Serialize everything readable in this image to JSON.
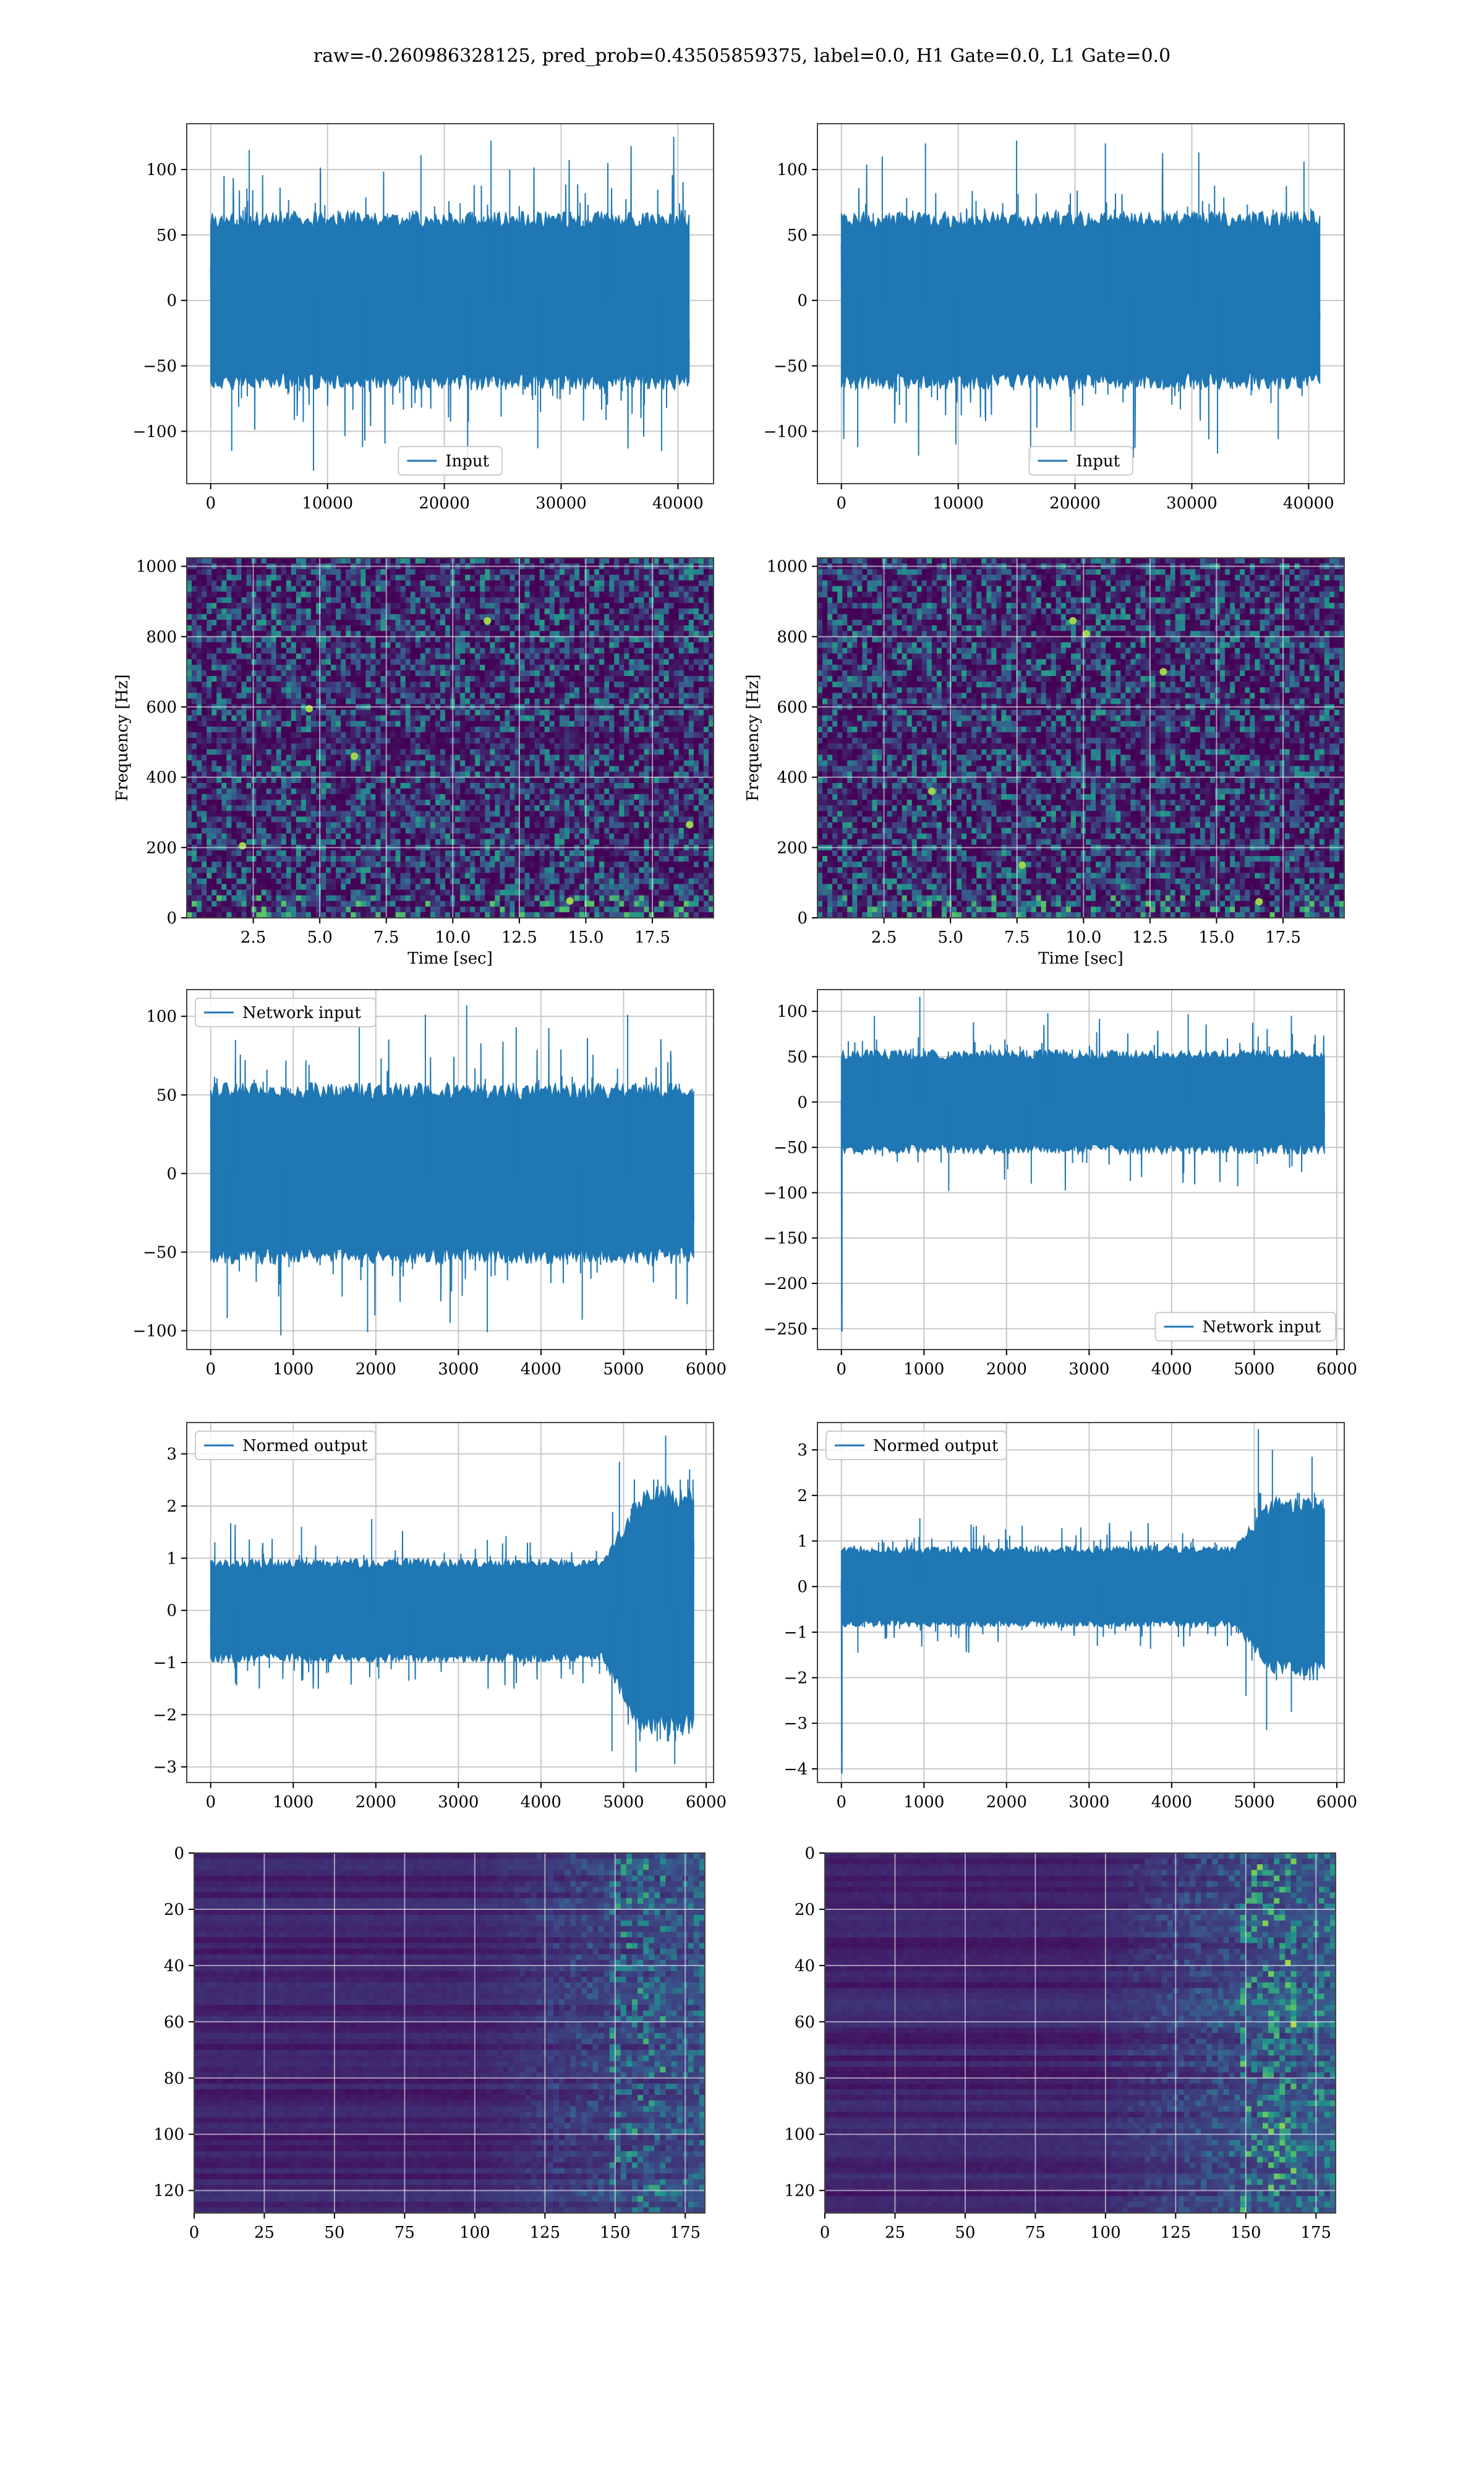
{
  "title": "raw=-0.260986328125, pred_prob=0.43505859375, label=0.0, H1 Gate=0.0, L1 Gate=0.0",
  "colors": {
    "line": "#1f77b4",
    "grid": "#c8c8c8",
    "viridis_low": "#440154",
    "viridis_mid": "#31688e",
    "viridis_high": "#35b779",
    "viridis_top": "#fde725"
  },
  "chart_data": [
    {
      "id": "h1-input",
      "type": "line",
      "legend": "Input",
      "legend_loc": "lower-center",
      "xlim": [
        -2050,
        43050
      ],
      "ylim": [
        -140,
        135
      ],
      "xticks": [
        0,
        10000,
        20000,
        30000,
        40000
      ],
      "xtick_labels": [
        "0",
        "10000",
        "20000",
        "30000",
        "40000"
      ],
      "yticks": [
        -100,
        -50,
        0,
        50,
        100
      ],
      "ytick_labels": [
        "−100",
        "−50",
        "0",
        "50",
        "100"
      ],
      "x_range": [
        0,
        40960
      ],
      "envelope": {
        "core": 65,
        "spike_max": 125,
        "spike_min": -130,
        "peaks": [
          [
            3300,
            115
          ],
          [
            9400,
            98
          ],
          [
            18000,
            111
          ],
          [
            24000,
            122
          ],
          [
            25600,
            100
          ],
          [
            34000,
            105
          ]
        ],
        "troughs": [
          [
            1800,
            -115
          ],
          [
            8800,
            -130
          ],
          [
            13000,
            -112
          ],
          [
            22000,
            -118
          ],
          [
            28000,
            -113
          ],
          [
            38600,
            -115
          ]
        ],
        "ramp": 0
      }
    },
    {
      "id": "l1-input",
      "type": "line",
      "legend": "Input",
      "legend_loc": "lower-center",
      "xlim": [
        -2050,
        43050
      ],
      "ylim": [
        -140,
        135
      ],
      "xticks": [
        0,
        10000,
        20000,
        30000,
        40000
      ],
      "xtick_labels": [
        "0",
        "10000",
        "20000",
        "30000",
        "40000"
      ],
      "yticks": [
        -100,
        -50,
        0,
        50,
        100
      ],
      "ytick_labels": [
        "−100",
        "−50",
        "0",
        "50",
        "100"
      ],
      "x_range": [
        0,
        40960
      ],
      "envelope": {
        "core": 65,
        "spike_max": 123,
        "spike_min": -125,
        "peaks": [
          [
            3500,
            110
          ],
          [
            7200,
            120
          ],
          [
            15000,
            122
          ],
          [
            22600,
            120
          ],
          [
            30600,
            113
          ],
          [
            39600,
            106
          ]
        ],
        "troughs": [
          [
            1400,
            -112
          ],
          [
            9800,
            -110
          ],
          [
            16200,
            -123
          ],
          [
            25000,
            -120
          ],
          [
            32200,
            -117
          ],
          [
            37400,
            -106
          ]
        ],
        "ramp": 0
      }
    },
    {
      "id": "h1-spectrogram",
      "type": "heatmap",
      "kind": "spectrogram",
      "xlabel": "Time [sec]",
      "ylabel": "Frequency [Hz]",
      "xlim": [
        0,
        19.8
      ],
      "ylim": [
        0,
        1024
      ],
      "xticks": [
        2.5,
        5.0,
        7.5,
        10.0,
        12.5,
        15.0,
        17.5
      ],
      "xtick_labels": [
        "2.5",
        "5.0",
        "7.5",
        "10.0",
        "12.5",
        "15.0",
        "17.5"
      ],
      "yticks": [
        0,
        200,
        400,
        600,
        800,
        1000
      ],
      "ytick_labels": [
        "0",
        "200",
        "400",
        "600",
        "800",
        "1000"
      ],
      "hot_spots": [
        [
          11.3,
          845
        ],
        [
          4.6,
          595
        ],
        [
          14.4,
          48
        ],
        [
          18.9,
          265
        ],
        [
          6.3,
          460
        ],
        [
          2.1,
          205
        ]
      ]
    },
    {
      "id": "l1-spectrogram",
      "type": "heatmap",
      "kind": "spectrogram",
      "xlabel": "Time [sec]",
      "ylabel": "Frequency [Hz]",
      "xlim": [
        0,
        19.8
      ],
      "ylim": [
        0,
        1024
      ],
      "xticks": [
        2.5,
        5.0,
        7.5,
        10.0,
        12.5,
        15.0,
        17.5
      ],
      "xtick_labels": [
        "2.5",
        "5.0",
        "7.5",
        "10.0",
        "12.5",
        "15.0",
        "17.5"
      ],
      "yticks": [
        0,
        200,
        400,
        600,
        800,
        1000
      ],
      "ytick_labels": [
        "0",
        "200",
        "400",
        "600",
        "800",
        "1000"
      ],
      "hot_spots": [
        [
          9.6,
          845
        ],
        [
          10.1,
          808
        ],
        [
          16.6,
          46
        ],
        [
          4.3,
          360
        ],
        [
          13.0,
          700
        ],
        [
          7.7,
          150
        ]
      ]
    },
    {
      "id": "h1-network-input",
      "type": "line",
      "legend": "Network input",
      "legend_loc": "upper-left",
      "xlim": [
        -290,
        6090
      ],
      "ylim": [
        -112,
        117
      ],
      "xticks": [
        0,
        1000,
        2000,
        3000,
        4000,
        5000,
        6000
      ],
      "xtick_labels": [
        "0",
        "1000",
        "2000",
        "3000",
        "4000",
        "5000",
        "6000"
      ],
      "yticks": [
        -100,
        -50,
        0,
        50,
        100
      ],
      "ytick_labels": [
        "−100",
        "−50",
        "0",
        "50",
        "100"
      ],
      "x_range": [
        0,
        5850
      ],
      "envelope": {
        "core": 55,
        "spike_max": 107,
        "spike_min": -103,
        "peaks": [
          [
            300,
            85
          ],
          [
            1800,
            94
          ],
          [
            2600,
            101
          ],
          [
            3100,
            107
          ],
          [
            3700,
            93
          ],
          [
            5050,
            101
          ]
        ],
        "troughs": [
          [
            200,
            -92
          ],
          [
            850,
            -103
          ],
          [
            1900,
            -101
          ],
          [
            2900,
            -95
          ],
          [
            3350,
            -101
          ],
          [
            4500,
            -93
          ]
        ],
        "ramp": 0
      }
    },
    {
      "id": "l1-network-input",
      "type": "line",
      "legend": "Network input",
      "legend_loc": "lower-right",
      "xlim": [
        -290,
        6090
      ],
      "ylim": [
        -273,
        124
      ],
      "xticks": [
        0,
        1000,
        2000,
        3000,
        4000,
        5000,
        6000
      ],
      "xtick_labels": [
        "0",
        "1000",
        "2000",
        "3000",
        "4000",
        "5000",
        "6000"
      ],
      "yticks": [
        -250,
        -200,
        -150,
        -100,
        -50,
        0,
        50,
        100
      ],
      "ytick_labels": [
        "−250",
        "−200",
        "−150",
        "−100",
        "−50",
        "0",
        "50",
        "100"
      ],
      "x_range": [
        0,
        5850
      ],
      "envelope": {
        "core": 55,
        "spike_max": 116,
        "spike_min": -98,
        "peaks": [
          [
            950,
            116
          ],
          [
            400,
            95
          ],
          [
            2500,
            98
          ],
          [
            4200,
            97
          ],
          [
            5450,
            95
          ]
        ],
        "troughs": [
          [
            1300,
            -98
          ],
          [
            2300,
            -90
          ],
          [
            3500,
            -87
          ],
          [
            4800,
            -93
          ]
        ],
        "ramp": 0,
        "start_spike": -253
      }
    },
    {
      "id": "h1-normed-output",
      "type": "line",
      "legend": "Normed output",
      "legend_loc": "upper-left",
      "xlim": [
        -290,
        6090
      ],
      "ylim": [
        -3.3,
        3.6
      ],
      "xticks": [
        0,
        1000,
        2000,
        3000,
        4000,
        5000,
        6000
      ],
      "xtick_labels": [
        "0",
        "1000",
        "2000",
        "3000",
        "4000",
        "5000",
        "6000"
      ],
      "yticks": [
        -3,
        -2,
        -1,
        0,
        1,
        2,
        3
      ],
      "ytick_labels": [
        "−3",
        "−2",
        "−1",
        "0",
        "1",
        "2",
        "3"
      ],
      "x_range": [
        0,
        5850
      ],
      "envelope": {
        "core": 0.95,
        "spike_max": 1.75,
        "spike_min": -1.5,
        "peaks": [
          [
            1100,
            1.6
          ],
          [
            1950,
            1.75
          ],
          [
            3350,
            1.35
          ],
          [
            5510,
            3.35
          ],
          [
            4950,
            2.85
          ],
          [
            5800,
            2.7
          ]
        ],
        "troughs": [
          [
            5150,
            -3.1
          ],
          [
            4860,
            -2.7
          ],
          [
            5620,
            -2.95
          ],
          [
            300,
            -1.4
          ],
          [
            2400,
            -1.35
          ]
        ],
        "ramp": [
          4750,
          5850,
          2.4
        ]
      }
    },
    {
      "id": "l1-normed-output",
      "type": "line",
      "legend": "Normed output",
      "legend_loc": "upper-left",
      "xlim": [
        -290,
        6090
      ],
      "ylim": [
        -4.3,
        3.6
      ],
      "xticks": [
        0,
        1000,
        2000,
        3000,
        4000,
        5000,
        6000
      ],
      "xtick_labels": [
        "0",
        "1000",
        "2000",
        "3000",
        "4000",
        "5000",
        "6000"
      ],
      "yticks": [
        -4,
        -3,
        -2,
        -1,
        0,
        1,
        2,
        3
      ],
      "ytick_labels": [
        "−4",
        "−3",
        "−2",
        "−1",
        "0",
        "1",
        "2",
        "3"
      ],
      "x_range": [
        0,
        5850
      ],
      "envelope": {
        "core": 0.85,
        "spike_max": 1.6,
        "spike_min": -1.45,
        "peaks": [
          [
            5050,
            3.45
          ],
          [
            5220,
            3.0
          ],
          [
            5700,
            2.85
          ],
          [
            950,
            1.5
          ],
          [
            2900,
            1.3
          ]
        ],
        "troughs": [
          [
            5150,
            -3.15
          ],
          [
            5450,
            -2.75
          ],
          [
            4900,
            -2.4
          ],
          [
            200,
            -1.45
          ],
          [
            3100,
            -1.3
          ]
        ],
        "ramp": [
          4750,
          5850,
          2.2
        ],
        "start_spike": -4.1
      }
    },
    {
      "id": "h1-feature-map",
      "type": "heatmap",
      "kind": "feature",
      "xlim": [
        0,
        182
      ],
      "ylim": [
        128,
        0
      ],
      "xticks": [
        0,
        25,
        50,
        75,
        100,
        125,
        150,
        175
      ],
      "xtick_labels": [
        "0",
        "25",
        "50",
        "75",
        "100",
        "125",
        "150",
        "175"
      ],
      "yticks": [
        0,
        20,
        40,
        60,
        80,
        100,
        120
      ],
      "ytick_labels": [
        "0",
        "20",
        "40",
        "60",
        "80",
        "100",
        "120"
      ],
      "onset": 100,
      "intensity": 0.75
    },
    {
      "id": "l1-feature-map",
      "type": "heatmap",
      "kind": "feature",
      "xlim": [
        0,
        182
      ],
      "ylim": [
        128,
        0
      ],
      "xticks": [
        0,
        25,
        50,
        75,
        100,
        125,
        150,
        175
      ],
      "xtick_labels": [
        "0",
        "25",
        "50",
        "75",
        "100",
        "125",
        "150",
        "175"
      ],
      "yticks": [
        0,
        20,
        40,
        60,
        80,
        100,
        120
      ],
      "ytick_labels": [
        "0",
        "20",
        "40",
        "60",
        "80",
        "100",
        "120"
      ],
      "onset": 95,
      "intensity": 1.0
    }
  ]
}
